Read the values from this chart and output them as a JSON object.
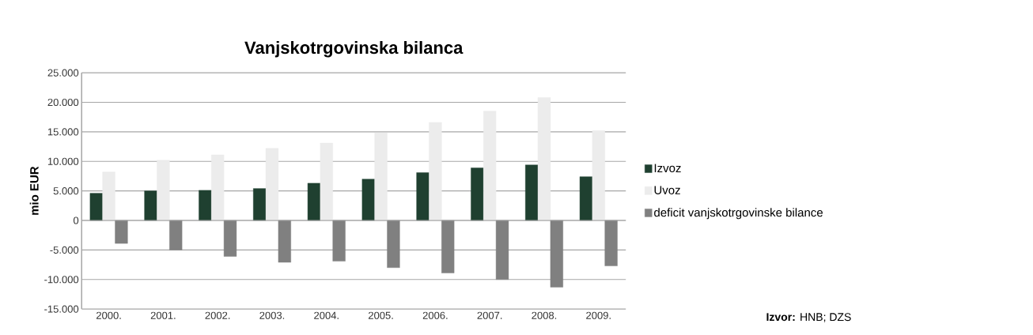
{
  "chart_data": {
    "type": "bar",
    "title": "Vanjskotrgovinska bilanca",
    "ylabel": "mio EUR",
    "categories": [
      "2000.",
      "2001.",
      "2002.",
      "2003.",
      "2004.",
      "2005.",
      "2006.",
      "2007.",
      "2008.",
      "2009."
    ],
    "series": [
      {
        "name": "Izvoz",
        "color": "#1f4030",
        "values": [
          4600,
          5000,
          5100,
          5400,
          6300,
          7000,
          8100,
          8900,
          9400,
          7400
        ]
      },
      {
        "name": "Uvoz",
        "color": "#ececec",
        "values": [
          8200,
          10200,
          11100,
          12200,
          13100,
          14800,
          16600,
          18500,
          20800,
          15200
        ]
      },
      {
        "name": "deficit vanjskotrgovinske bilance",
        "color": "#808080",
        "values": [
          -3900,
          -5000,
          -6100,
          -7100,
          -6900,
          -8000,
          -8900,
          -10000,
          -11300,
          -7700
        ]
      }
    ],
    "ylim": [
      -15000,
      25000
    ],
    "yticks": [
      {
        "value": -15000,
        "label": "-15.000"
      },
      {
        "value": -10000,
        "label": "-10.000"
      },
      {
        "value": -5000,
        "label": "-5.000"
      },
      0,
      {
        "value": 5000,
        "label": "5.000"
      },
      {
        "value": 10000,
        "label": "10.000"
      },
      {
        "value": 15000,
        "label": "15.000"
      },
      {
        "value": 20000,
        "label": "20.000"
      },
      {
        "value": 25000,
        "label": "25.000"
      }
    ],
    "grid": "y",
    "legend": "right",
    "annotations": [
      "**Izvor:** HNB; DZS"
    ]
  }
}
